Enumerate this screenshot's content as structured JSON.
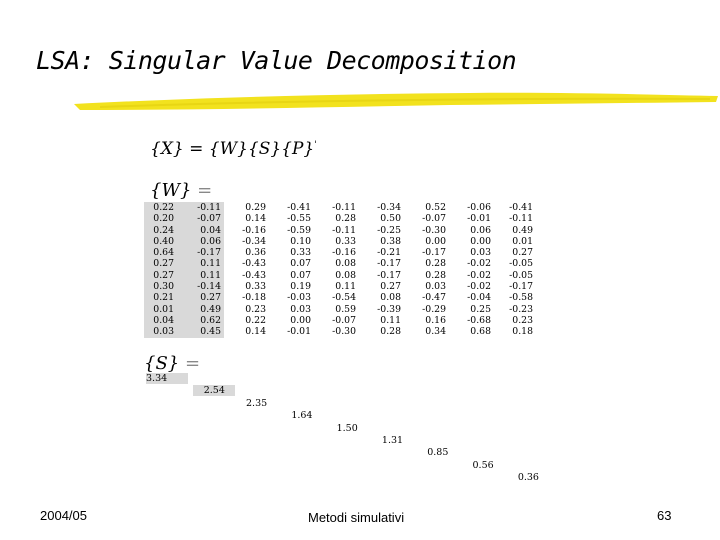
{
  "slide": {
    "title": "LSA: Singular Value Decomposition",
    "underline_color": "#f2e21e"
  },
  "equation": {
    "lhs": "{X}",
    "eq": " = ",
    "rhs": "{W}{S}{P}",
    "transpose_mark": "'"
  },
  "w_matrix": {
    "label": "{W}",
    "equals": " =",
    "rows": [
      [
        "0.22",
        "-0.11",
        "0.29",
        "-0.41",
        "-0.11",
        "-0.34",
        "0.52",
        "-0.06",
        "-0.41"
      ],
      [
        "0.20",
        "-0.07",
        "0.14",
        "-0.55",
        "0.28",
        "0.50",
        "-0.07",
        "-0.01",
        "-0.11"
      ],
      [
        "0.24",
        "0.04",
        "-0.16",
        "-0.59",
        "-0.11",
        "-0.25",
        "-0.30",
        "0.06",
        "0.49"
      ],
      [
        "0.40",
        "0.06",
        "-0.34",
        "0.10",
        "0.33",
        "0.38",
        "0.00",
        "0.00",
        "0.01"
      ],
      [
        "0.64",
        "-0.17",
        "0.36",
        "0.33",
        "-0.16",
        "-0.21",
        "-0.17",
        "0.03",
        "0.27"
      ],
      [
        "0.27",
        "0.11",
        "-0.43",
        "0.07",
        "0.08",
        "-0.17",
        "0.28",
        "-0.02",
        "-0.05"
      ],
      [
        "0.27",
        "0.11",
        "-0.43",
        "0.07",
        "0.08",
        "-0.17",
        "0.28",
        "-0.02",
        "-0.05"
      ],
      [
        "0.30",
        "-0.14",
        "0.33",
        "0.19",
        "0.11",
        "0.27",
        "0.03",
        "-0.02",
        "-0.17"
      ],
      [
        "0.21",
        "0.27",
        "-0.18",
        "-0.03",
        "-0.54",
        "0.08",
        "-0.47",
        "-0.04",
        "-0.58"
      ],
      [
        "0.01",
        "0.49",
        "0.23",
        "0.03",
        "0.59",
        "-0.39",
        "-0.29",
        "0.25",
        "-0.23"
      ],
      [
        "0.04",
        "0.62",
        "0.22",
        "0.00",
        "-0.07",
        "0.11",
        "0.16",
        "-0.68",
        "0.23"
      ],
      [
        "0.03",
        "0.45",
        "0.14",
        "-0.01",
        "-0.30",
        "0.28",
        "0.34",
        "0.68",
        "0.18"
      ]
    ]
  },
  "s_matrix": {
    "label": "{S}",
    "equals": " =",
    "diagonal": [
      "3.34",
      "2.54",
      "2.35",
      "1.64",
      "1.50",
      "1.31",
      "0.85",
      "0.56",
      "0.36"
    ]
  },
  "footer": {
    "date": "2004/05",
    "center": "Metodi simulativi",
    "page": "63"
  }
}
